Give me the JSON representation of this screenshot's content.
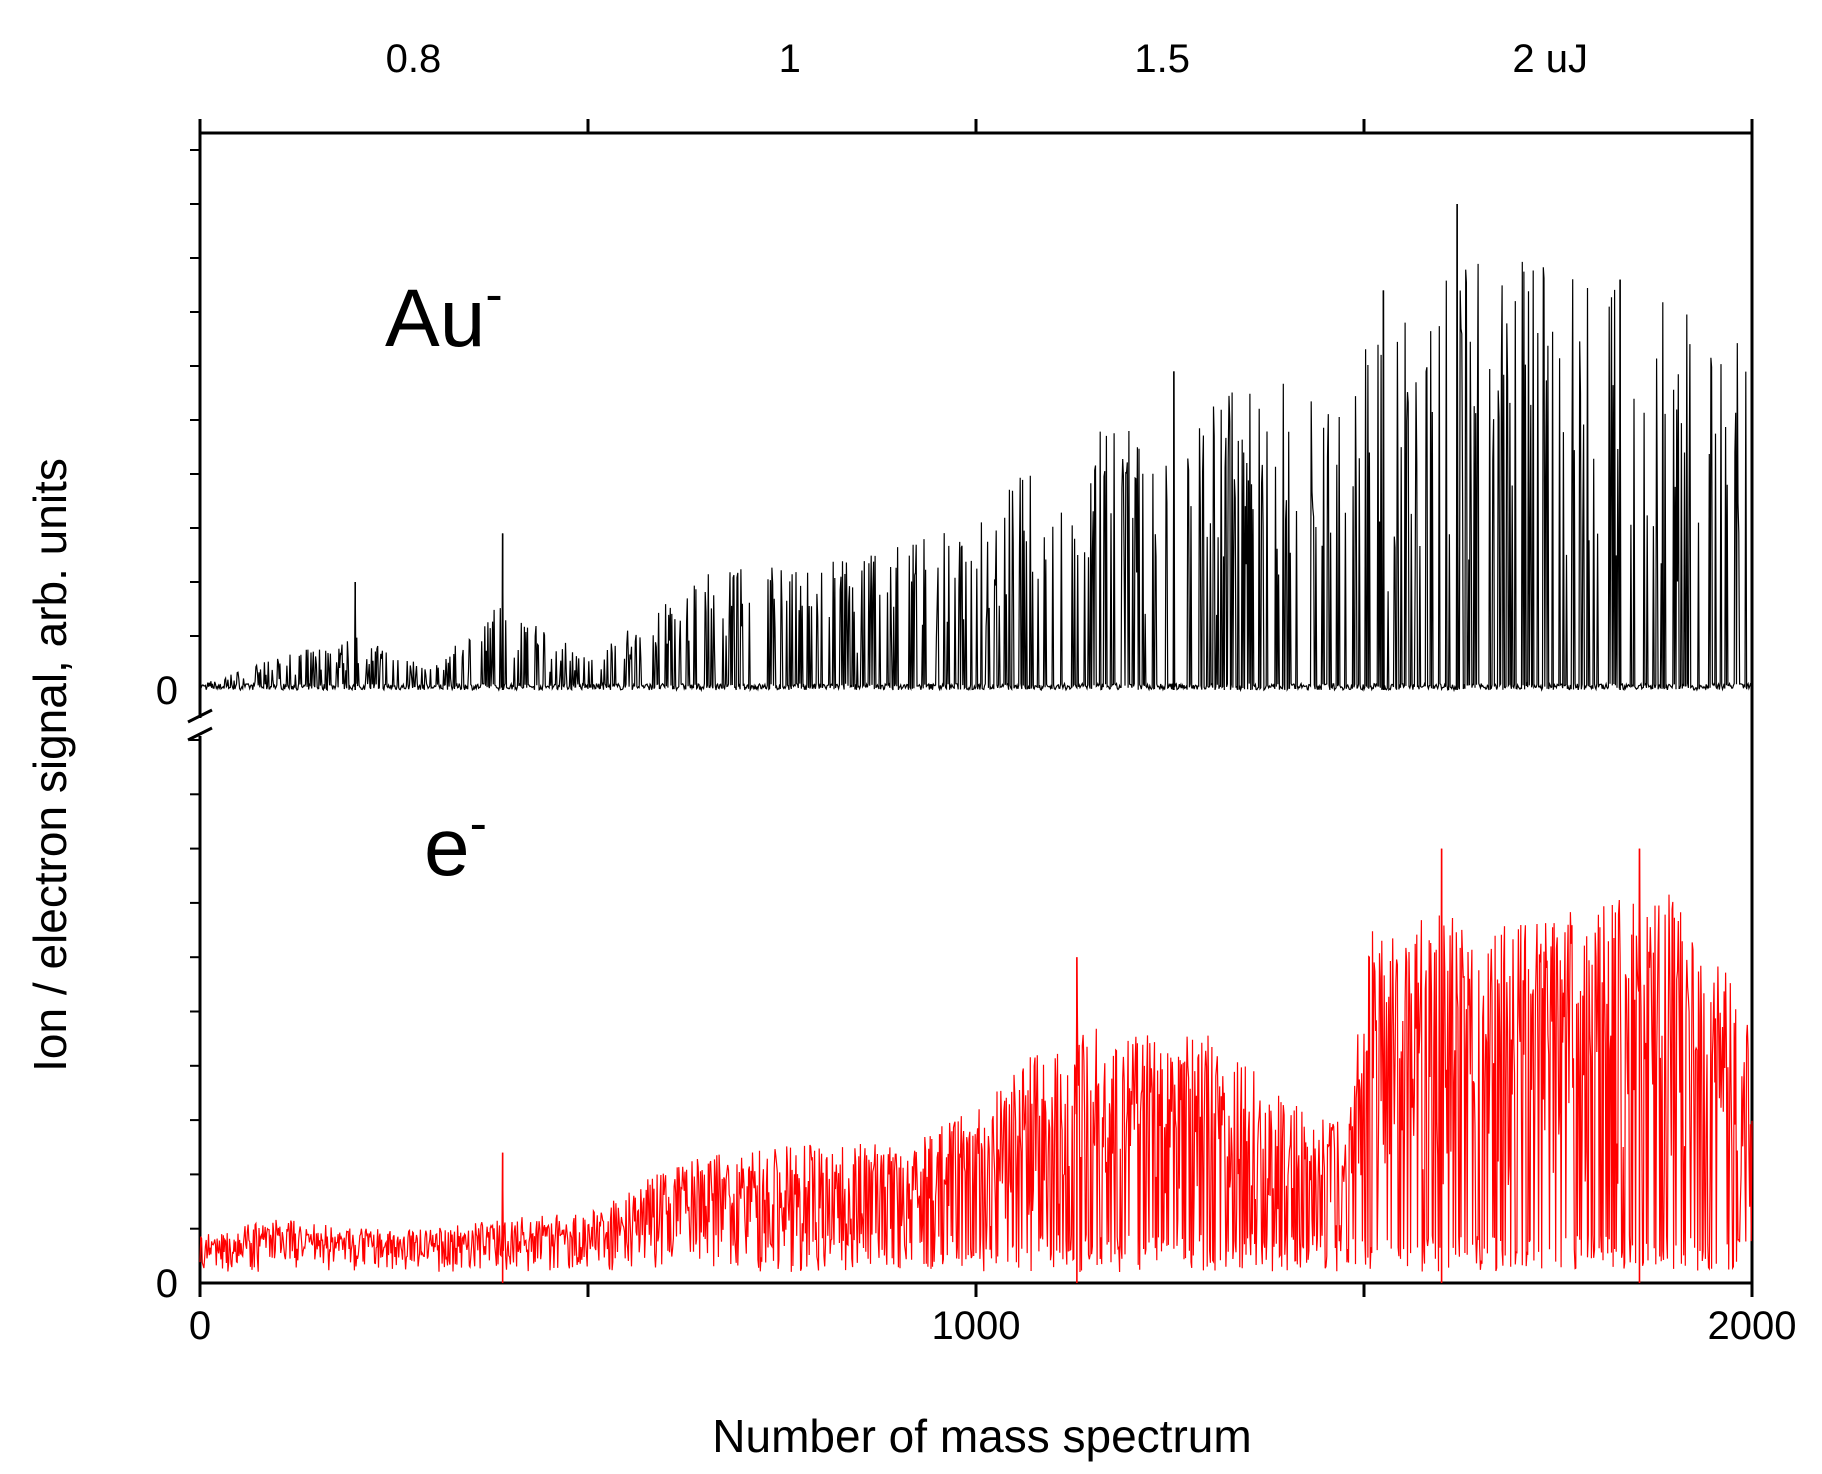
{
  "chart_data": {
    "type": "line",
    "xlabel": "Number of mass spectrum",
    "ylabel": "Ion / electron signal, arb. units",
    "xlim": [
      0,
      2000
    ],
    "x_ticks": [
      {
        "value": 0,
        "label": "0"
      },
      {
        "value": 500,
        "label": ""
      },
      {
        "value": 1000,
        "label": "1000"
      },
      {
        "value": 1500,
        "label": ""
      },
      {
        "value": 2000,
        "label": "2000"
      }
    ],
    "top_axis": {
      "ticks_x": [
        500,
        1000,
        1500,
        2000
      ],
      "labels": [
        {
          "x": 275,
          "text": "0.8"
        },
        {
          "x": 760,
          "text": "1"
        },
        {
          "x": 1240,
          "text": "1.5"
        },
        {
          "x": 1740,
          "text": "2 uJ"
        }
      ]
    },
    "panels": [
      {
        "name": "Au-",
        "label_main": "Au",
        "label_sup": "-",
        "zero_label": "0",
        "color": "#000000",
        "ylim": [
          0,
          1
        ],
        "minor_ticks": 10,
        "envelope": [
          [
            0,
            0.01
          ],
          [
            100,
            0.06
          ],
          [
            200,
            0.1
          ],
          [
            300,
            0.04
          ],
          [
            390,
            0.17
          ],
          [
            500,
            0.06
          ],
          [
            580,
            0.14
          ],
          [
            660,
            0.22
          ],
          [
            800,
            0.24
          ],
          [
            900,
            0.27
          ],
          [
            1000,
            0.33
          ],
          [
            1100,
            0.45
          ],
          [
            1200,
            0.5
          ],
          [
            1300,
            0.55
          ],
          [
            1400,
            0.57
          ],
          [
            1480,
            0.5
          ],
          [
            1500,
            0.68
          ],
          [
            1600,
            0.78
          ],
          [
            1700,
            0.8
          ],
          [
            1800,
            0.75
          ],
          [
            1900,
            0.74
          ],
          [
            2000,
            0.62
          ]
        ],
        "noise_floor": 0.02,
        "sparsity": 0.75,
        "peaks": [
          {
            "x": 200,
            "value": 0.2
          },
          {
            "x": 390,
            "value": 0.29
          },
          {
            "x": 1255,
            "value": 0.59
          },
          {
            "x": 1525,
            "value": 0.74
          },
          {
            "x": 1620,
            "value": 0.9
          },
          {
            "x": 1830,
            "value": 0.76
          }
        ]
      },
      {
        "name": "e-",
        "label_main": "e",
        "label_sup": "-",
        "zero_label": "0",
        "color": "#ff0000",
        "ylim": [
          0,
          1
        ],
        "minor_ticks": 10,
        "envelope": [
          [
            0,
            0.09
          ],
          [
            100,
            0.12
          ],
          [
            200,
            0.1
          ],
          [
            300,
            0.1
          ],
          [
            390,
            0.12
          ],
          [
            500,
            0.13
          ],
          [
            580,
            0.2
          ],
          [
            660,
            0.24
          ],
          [
            800,
            0.26
          ],
          [
            900,
            0.26
          ],
          [
            1000,
            0.32
          ],
          [
            1100,
            0.46
          ],
          [
            1200,
            0.48
          ],
          [
            1300,
            0.46
          ],
          [
            1400,
            0.34
          ],
          [
            1480,
            0.3
          ],
          [
            1500,
            0.65
          ],
          [
            1600,
            0.68
          ],
          [
            1700,
            0.66
          ],
          [
            1800,
            0.7
          ],
          [
            1900,
            0.72
          ],
          [
            2000,
            0.5
          ]
        ],
        "noise_floor": 0.07,
        "sparsity": 0.3,
        "peaks": [
          {
            "x": 390,
            "value": 0.24
          },
          {
            "x": 1130,
            "value": 0.6
          },
          {
            "x": 1600,
            "value": 0.8
          },
          {
            "x": 1855,
            "value": 0.8
          }
        ]
      }
    ]
  }
}
